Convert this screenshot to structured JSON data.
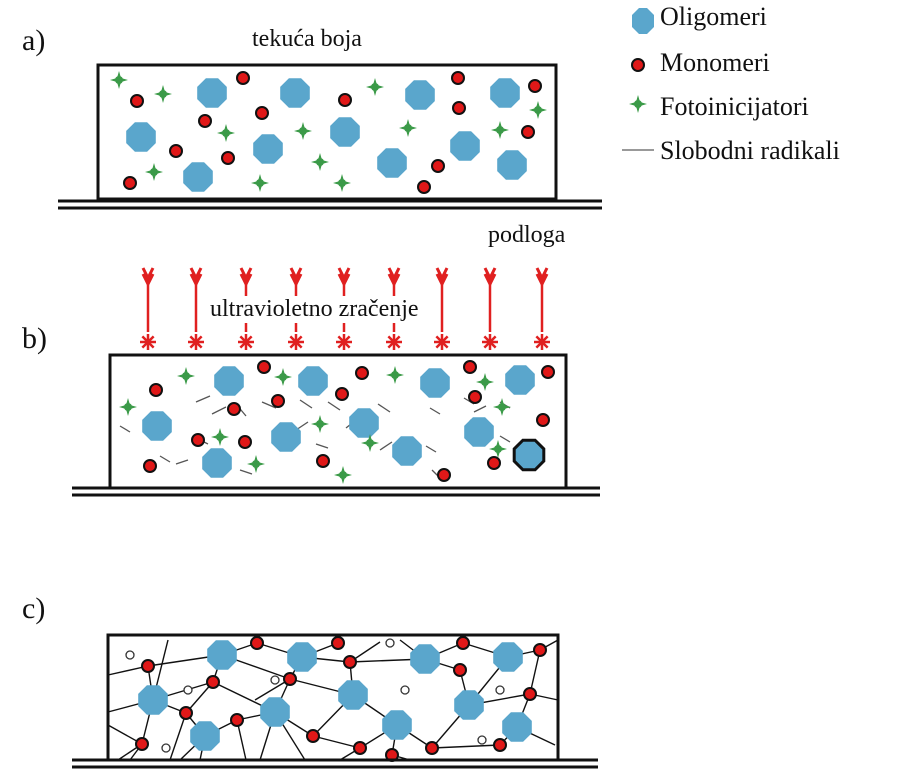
{
  "panels": {
    "a": {
      "label": "a)",
      "caption": "tekuća boja",
      "substrate": "podloga"
    },
    "b": {
      "label": "b)",
      "caption": "ultravioletno zračenje"
    },
    "c": {
      "label": "c)"
    }
  },
  "legend": [
    {
      "key": "oligomer",
      "label": "Oligomeri"
    },
    {
      "key": "monomer",
      "label": "Monomeri"
    },
    {
      "key": "photoinitiator",
      "label": "Fotoinicijatori"
    },
    {
      "key": "radical",
      "label": "Slobodni radikali"
    }
  ],
  "colors": {
    "oligomer": "#5aa6cc",
    "monomer": "#e01818",
    "photoinitiator": "#3b9a48",
    "uv": "#e02020",
    "line": "#111111"
  }
}
